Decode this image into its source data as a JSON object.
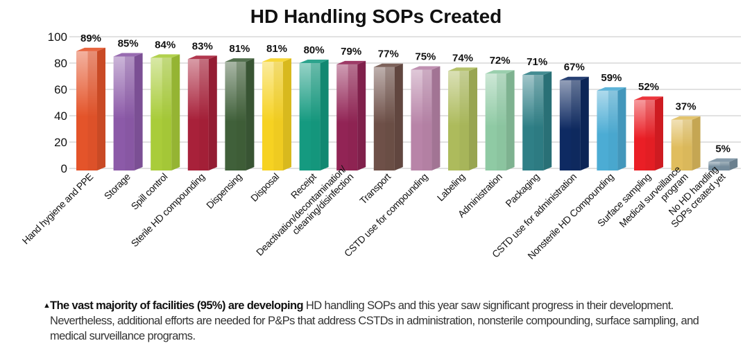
{
  "chart_data": {
    "type": "bar",
    "title": "HD Handling SOPs Created",
    "xlabel": "",
    "ylabel": "",
    "ylim": [
      0,
      100
    ],
    "yticks": [
      0,
      20,
      40,
      60,
      80,
      100
    ],
    "grid": true,
    "style": "3d-bars",
    "categories": [
      "Hand hygiene and PPE",
      "Storage",
      "Spill control",
      "Sterile HD compounding",
      "Dispensing",
      "Disposal",
      "Receipt",
      "Deactivation/decontamination/\ncleaning/disinfection",
      "Transport",
      "CSTD use for compounding",
      "Labeling",
      "Administration",
      "Packaging",
      "CSTD use for administration",
      "Nonsterile HD Compounding",
      "Surface sampling",
      "Medical surveillance\nprogram",
      "No HD handling\nSOPs created yet"
    ],
    "values": [
      89,
      85,
      84,
      83,
      81,
      81,
      80,
      79,
      77,
      75,
      74,
      72,
      71,
      67,
      59,
      52,
      37,
      5
    ],
    "data_labels": [
      "89%",
      "85%",
      "84%",
      "83%",
      "81%",
      "81%",
      "80%",
      "79%",
      "77%",
      "75%",
      "74%",
      "72%",
      "71%",
      "67%",
      "59%",
      "52%",
      "37%",
      "5%"
    ],
    "colors": [
      "#e4542a",
      "#8c5aa8",
      "#a9cc3a",
      "#a8213a",
      "#40603a",
      "#f6d222",
      "#159a80",
      "#922455",
      "#6e5048",
      "#b884a8",
      "#adbb5c",
      "#8fcaa4",
      "#2f7f86",
      "#0e2a62",
      "#4cacd4",
      "#ea1f26",
      "#e0bd5e",
      "#7890a0"
    ]
  },
  "caption": {
    "bold": "The vast majority of facilities (95%) are developing",
    "text": " HD handling SOPs and this year saw significant progress in their development. Nevertheless, additional efforts are needed for P&Ps that address CSTDs in administration, nonsterile compounding, surface sampling, and medical surveillance programs.",
    "bullet_icon": "triangle-up"
  }
}
